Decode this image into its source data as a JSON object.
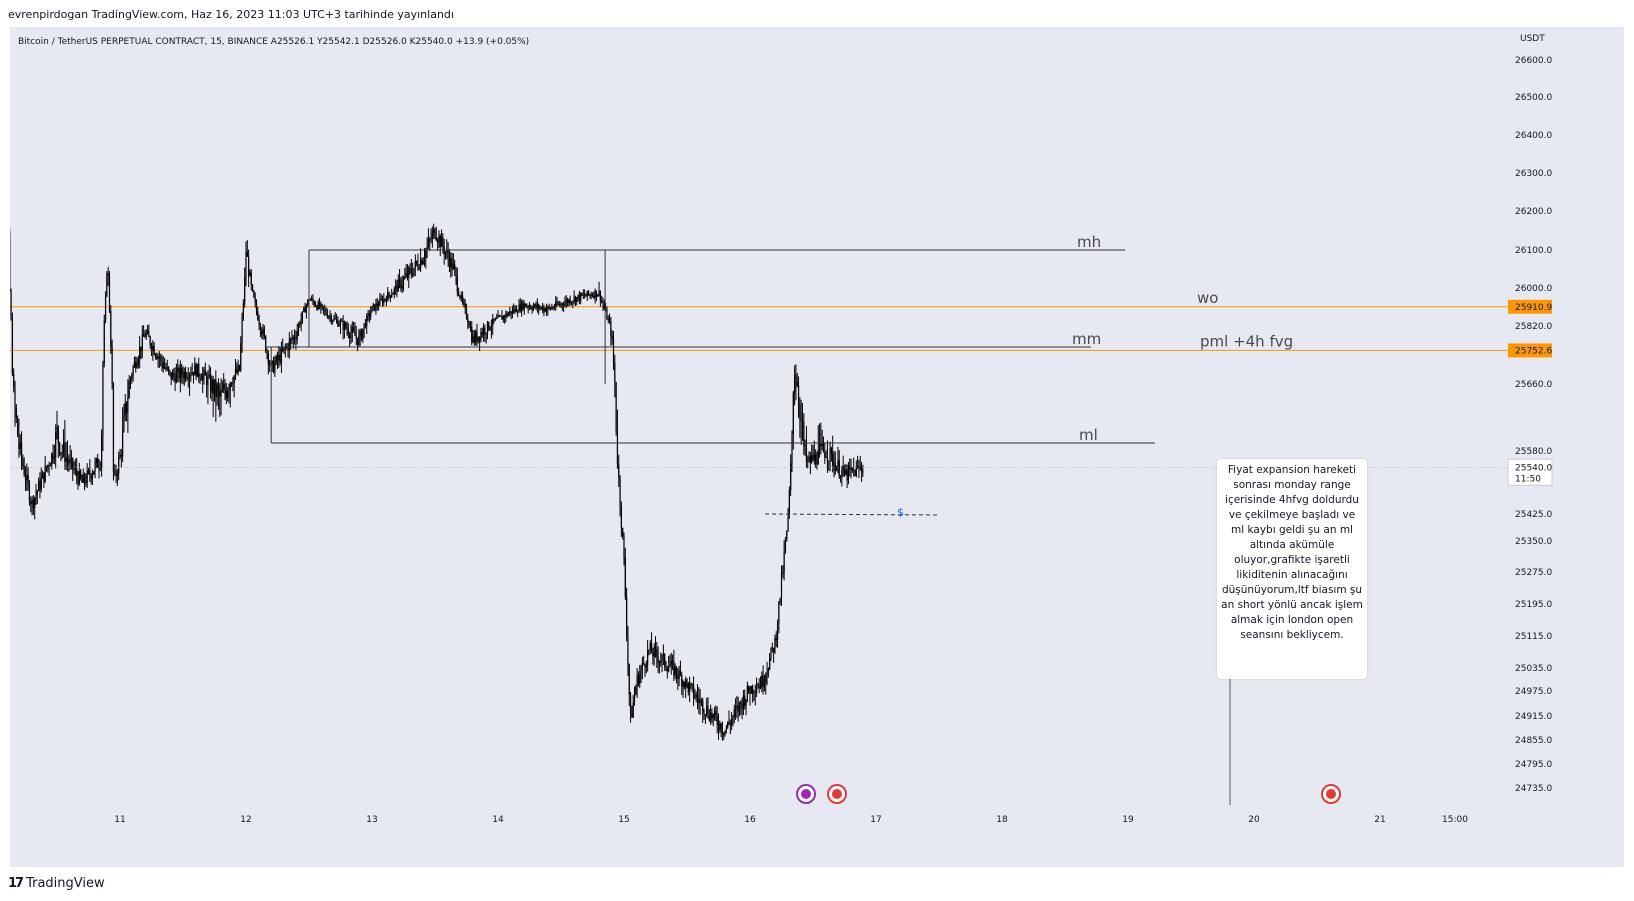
{
  "header": {
    "publish_line": "evrenpirdogan TradingView.com, Haz 16, 2023 11:03 UTC+3 tarihinde yayınlandı"
  },
  "footer": {
    "brand": "TradingView",
    "logo": "17"
  },
  "chart_data": {
    "type": "candlestick",
    "title": "Bitcoin / TetherUS PERPETUAL CONTRACT, 15, BINANCE",
    "ohlc_legend": "A25526.1  Y25542.1  D25526.0  K25540.0  +13.9 (+0.05%)",
    "currency": "USDT",
    "y_ticks": [
      "26600.0",
      "26500.0",
      "26400.0",
      "26300.0",
      "26200.0",
      "26100.0",
      "26000.0",
      "25820.0",
      "25660.0",
      "25580.0",
      "25425.0",
      "25350.0",
      "25275.0",
      "25195.0",
      "25115.0",
      "25035.0",
      "24975.0",
      "24915.0",
      "24855.0",
      "24795.0",
      "24735.0"
    ],
    "x_ticks": [
      "11",
      "12",
      "13",
      "14",
      "15",
      "16",
      "17",
      "18",
      "19",
      "20",
      "21",
      "15:00"
    ],
    "current_price": {
      "value": "25540.0",
      "countdown": "11:50"
    },
    "horizontal_levels": [
      {
        "label": "wo",
        "price": "25910.9",
        "color": "#ff9800"
      },
      {
        "label": "pml +4h fvg",
        "price": "25752.6",
        "color": "#ff9800"
      }
    ],
    "range_lines": [
      {
        "label": "mh"
      },
      {
        "label": "mm"
      },
      {
        "label": "ml"
      }
    ],
    "liquidity_marker": "$",
    "price_path": [
      [
        10.0,
        26480
      ],
      [
        10.1,
        26320
      ],
      [
        10.15,
        25650
      ],
      [
        10.3,
        25450
      ],
      [
        10.5,
        25600
      ],
      [
        10.7,
        25500
      ],
      [
        10.85,
        25560
      ],
      [
        10.9,
        26100
      ],
      [
        10.95,
        25500
      ],
      [
        11.1,
        25700
      ],
      [
        11.2,
        25800
      ],
      [
        11.4,
        25680
      ],
      [
        11.6,
        25700
      ],
      [
        11.8,
        25640
      ],
      [
        11.95,
        25700
      ],
      [
        12.0,
        26100
      ],
      [
        12.1,
        25850
      ],
      [
        12.2,
        25700
      ],
      [
        12.4,
        25800
      ],
      [
        12.5,
        25950
      ],
      [
        12.7,
        25850
      ],
      [
        12.9,
        25780
      ],
      [
        13.0,
        25900
      ],
      [
        13.2,
        26000
      ],
      [
        13.4,
        26080
      ],
      [
        13.5,
        26150
      ],
      [
        13.65,
        26050
      ],
      [
        13.8,
        25780
      ],
      [
        14.0,
        25850
      ],
      [
        14.2,
        25920
      ],
      [
        14.4,
        25900
      ],
      [
        14.6,
        25950
      ],
      [
        14.8,
        25980
      ],
      [
        14.9,
        25800
      ],
      [
        15.0,
        25300
      ],
      [
        15.05,
        24900
      ],
      [
        15.1,
        25000
      ],
      [
        15.2,
        25080
      ],
      [
        15.4,
        25030
      ],
      [
        15.6,
        24950
      ],
      [
        15.8,
        24880
      ],
      [
        16.0,
        24980
      ],
      [
        16.1,
        25000
      ],
      [
        16.2,
        25100
      ],
      [
        16.3,
        25400
      ],
      [
        16.35,
        25700
      ],
      [
        16.45,
        25550
      ],
      [
        16.6,
        25580
      ],
      [
        16.75,
        25520
      ],
      [
        16.9,
        25540
      ]
    ]
  }
}
